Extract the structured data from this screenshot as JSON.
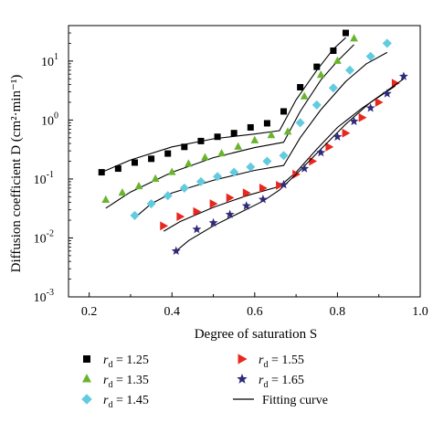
{
  "chart_data": {
    "type": "scatter",
    "xlabel": "Degree of saturation S",
    "ylabel": "Diffusion coefficient D (cm²·min⁻¹)",
    "xlim": [
      0.15,
      1.0
    ],
    "ylim": [
      0.001,
      40
    ],
    "yscale": "log",
    "x_ticks": [
      "0.2",
      "0.4",
      "0.6",
      "0.8",
      "1.0"
    ],
    "x_tick_values": [
      0.2,
      0.4,
      0.6,
      0.8,
      1.0
    ],
    "y_tick_values": [
      0.001,
      0.01,
      0.1,
      1,
      10
    ],
    "y_tick_base": "10",
    "y_tick_exponents": [
      "-3",
      "-2",
      "-1",
      "0",
      "1"
    ],
    "legend_placement": "bottom",
    "series": [
      {
        "label_var": "r",
        "label_sub": "d",
        "label_rest": " = 1.25",
        "marker": "square",
        "color": "#000000",
        "points": [
          [
            0.23,
            0.13
          ],
          [
            0.27,
            0.15
          ],
          [
            0.31,
            0.19
          ],
          [
            0.35,
            0.22
          ],
          [
            0.39,
            0.27
          ],
          [
            0.43,
            0.35
          ],
          [
            0.47,
            0.44
          ],
          [
            0.51,
            0.52
          ],
          [
            0.55,
            0.6
          ],
          [
            0.59,
            0.75
          ],
          [
            0.63,
            0.88
          ],
          [
            0.67,
            1.4
          ],
          [
            0.71,
            3.6
          ],
          [
            0.75,
            8
          ],
          [
            0.79,
            15
          ],
          [
            0.82,
            30
          ]
        ],
        "fit": [
          [
            0.23,
            0.13
          ],
          [
            0.3,
            0.21
          ],
          [
            0.4,
            0.35
          ],
          [
            0.5,
            0.48
          ],
          [
            0.6,
            0.58
          ],
          [
            0.66,
            0.66
          ],
          [
            0.7,
            2.2
          ],
          [
            0.75,
            7
          ],
          [
            0.79,
            16
          ],
          [
            0.82,
            25
          ]
        ]
      },
      {
        "label_var": "r",
        "label_sub": "d",
        "label_rest": " = 1.35",
        "marker": "triangle",
        "color": "#6ab42d",
        "points": [
          [
            0.24,
            0.044
          ],
          [
            0.28,
            0.058
          ],
          [
            0.32,
            0.075
          ],
          [
            0.36,
            0.1
          ],
          [
            0.4,
            0.13
          ],
          [
            0.44,
            0.18
          ],
          [
            0.48,
            0.23
          ],
          [
            0.52,
            0.27
          ],
          [
            0.56,
            0.35
          ],
          [
            0.6,
            0.45
          ],
          [
            0.64,
            0.55
          ],
          [
            0.68,
            0.63
          ],
          [
            0.72,
            2.5
          ],
          [
            0.76,
            5.8
          ],
          [
            0.8,
            10
          ],
          [
            0.84,
            24
          ]
        ],
        "fit": [
          [
            0.24,
            0.032
          ],
          [
            0.3,
            0.06
          ],
          [
            0.4,
            0.13
          ],
          [
            0.5,
            0.23
          ],
          [
            0.6,
            0.34
          ],
          [
            0.67,
            0.42
          ],
          [
            0.71,
            1.4
          ],
          [
            0.76,
            4.8
          ],
          [
            0.8,
            10
          ],
          [
            0.84,
            19
          ]
        ]
      },
      {
        "label_var": "r",
        "label_sub": "d",
        "label_rest": " = 1.45",
        "marker": "diamond",
        "color": "#62cbe0",
        "points": [
          [
            0.31,
            0.024
          ],
          [
            0.35,
            0.038
          ],
          [
            0.39,
            0.052
          ],
          [
            0.43,
            0.07
          ],
          [
            0.47,
            0.09
          ],
          [
            0.51,
            0.11
          ],
          [
            0.55,
            0.13
          ],
          [
            0.59,
            0.16
          ],
          [
            0.63,
            0.2
          ],
          [
            0.67,
            0.25
          ],
          [
            0.71,
            0.9
          ],
          [
            0.75,
            1.8
          ],
          [
            0.79,
            3.5
          ],
          [
            0.83,
            7
          ],
          [
            0.88,
            12
          ],
          [
            0.92,
            20
          ]
        ],
        "fit": [
          [
            0.31,
            0.022
          ],
          [
            0.35,
            0.038
          ],
          [
            0.4,
            0.058
          ],
          [
            0.5,
            0.095
          ],
          [
            0.6,
            0.14
          ],
          [
            0.67,
            0.17
          ],
          [
            0.71,
            0.5
          ],
          [
            0.76,
            1.5
          ],
          [
            0.82,
            4.5
          ],
          [
            0.87,
            9
          ],
          [
            0.92,
            14
          ]
        ]
      },
      {
        "label_var": "r",
        "label_sub": "d",
        "label_rest": " = 1.55",
        "marker": "triangle-right",
        "color": "#e8281e",
        "points": [
          [
            0.38,
            0.016
          ],
          [
            0.42,
            0.023
          ],
          [
            0.46,
            0.028
          ],
          [
            0.5,
            0.038
          ],
          [
            0.54,
            0.048
          ],
          [
            0.58,
            0.058
          ],
          [
            0.62,
            0.07
          ],
          [
            0.66,
            0.078
          ],
          [
            0.7,
            0.12
          ],
          [
            0.74,
            0.2
          ],
          [
            0.78,
            0.35
          ],
          [
            0.82,
            0.6
          ],
          [
            0.86,
            1.1
          ],
          [
            0.9,
            2
          ],
          [
            0.94,
            4.2
          ]
        ],
        "fit": [
          [
            0.38,
            0.013
          ],
          [
            0.42,
            0.019
          ],
          [
            0.5,
            0.033
          ],
          [
            0.58,
            0.052
          ],
          [
            0.66,
            0.075
          ],
          [
            0.7,
            0.13
          ],
          [
            0.75,
            0.32
          ],
          [
            0.8,
            0.75
          ],
          [
            0.86,
            1.6
          ],
          [
            0.94,
            3.8
          ]
        ]
      },
      {
        "label_var": "r",
        "label_sub": "d",
        "label_rest": " = 1.65",
        "marker": "star",
        "color": "#2f2a7a",
        "points": [
          [
            0.41,
            0.006
          ],
          [
            0.46,
            0.014
          ],
          [
            0.5,
            0.018
          ],
          [
            0.54,
            0.025
          ],
          [
            0.58,
            0.035
          ],
          [
            0.62,
            0.045
          ],
          [
            0.67,
            0.08
          ],
          [
            0.72,
            0.15
          ],
          [
            0.76,
            0.28
          ],
          [
            0.8,
            0.52
          ],
          [
            0.84,
            0.95
          ],
          [
            0.88,
            1.6
          ],
          [
            0.92,
            2.8
          ],
          [
            0.96,
            5.5
          ]
        ],
        "fit": [
          [
            0.41,
            0.006
          ],
          [
            0.44,
            0.009
          ],
          [
            0.5,
            0.016
          ],
          [
            0.56,
            0.026
          ],
          [
            0.62,
            0.042
          ],
          [
            0.66,
            0.065
          ],
          [
            0.71,
            0.14
          ],
          [
            0.76,
            0.32
          ],
          [
            0.82,
            0.85
          ],
          [
            0.88,
            2
          ],
          [
            0.96,
            5
          ]
        ]
      }
    ],
    "fit_label": "Fitting curve"
  }
}
